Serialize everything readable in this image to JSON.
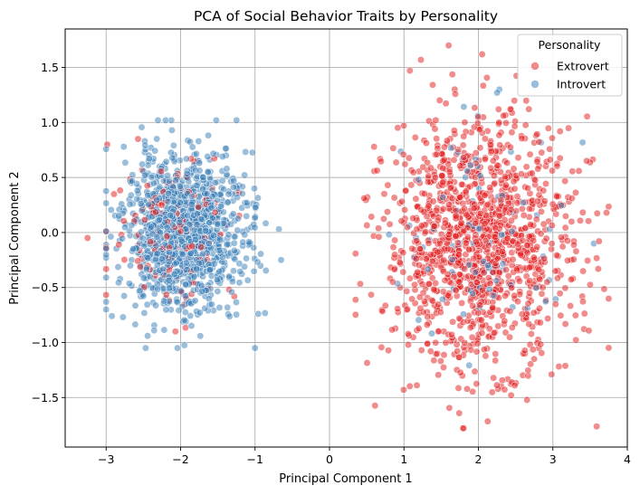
{
  "chart_data": {
    "type": "scatter",
    "title": "PCA of Social Behavior Traits by Personality",
    "xlabel": "Principal Component 1",
    "ylabel": "Principal Component 2",
    "xlim": [
      -3.55,
      4.0
    ],
    "ylim": [
      -1.95,
      1.85
    ],
    "xticks": [
      -3,
      -2,
      -1,
      0,
      1,
      2,
      3,
      4
    ],
    "xtick_labels": [
      "−3",
      "−2",
      "−1",
      "0",
      "1",
      "2",
      "3",
      "4"
    ],
    "yticks": [
      -1.5,
      -1.0,
      -0.5,
      0.0,
      0.5,
      1.0,
      1.5
    ],
    "ytick_labels": [
      "−1.5",
      "−1.0",
      "−0.5",
      "0.0",
      "0.5",
      "1.0",
      "1.5"
    ],
    "grid": true,
    "legend": {
      "title": "Personality",
      "placement": "top-right"
    },
    "series": [
      {
        "name": "Extrovert",
        "color": "#e41a1c",
        "cluster_right": {
          "count": 1280,
          "center": [
            2.0,
            -0.1
          ],
          "x_range": [
            0.35,
            3.75
          ],
          "y_range": [
            -1.78,
            1.7
          ],
          "spread": [
            0.62,
            0.55
          ]
        },
        "cluster_left_overlap": {
          "count": 140,
          "center": [
            -2.1,
            0.05
          ],
          "spread": [
            0.42,
            0.35
          ]
        },
        "notable_points": [
          [
            -3.25,
            -0.05
          ],
          [
            2.05,
            1.62
          ],
          [
            1.6,
            1.7
          ],
          [
            1.8,
            -1.78
          ],
          [
            3.62,
            -0.08
          ],
          [
            3.72,
            0.18
          ]
        ]
      },
      {
        "name": "Introvert",
        "color": "#377eb8",
        "cluster_left": {
          "count": 1150,
          "center": [
            -1.95,
            0.0
          ],
          "x_range": [
            -3.0,
            -0.65
          ],
          "y_range": [
            -1.05,
            1.02
          ],
          "spread": [
            0.42,
            0.36
          ]
        },
        "cluster_right_overlap": {
          "count": 90,
          "center": [
            2.1,
            -0.05
          ],
          "spread": [
            0.55,
            0.5
          ]
        },
        "notable_points": [
          [
            -1.0,
            -1.05
          ],
          [
            -0.65,
            -0.25
          ],
          [
            -0.68,
            0.03
          ],
          [
            -2.2,
            1.02
          ],
          [
            2.25,
            1.27
          ],
          [
            3.55,
            -0.1
          ]
        ]
      }
    ]
  }
}
